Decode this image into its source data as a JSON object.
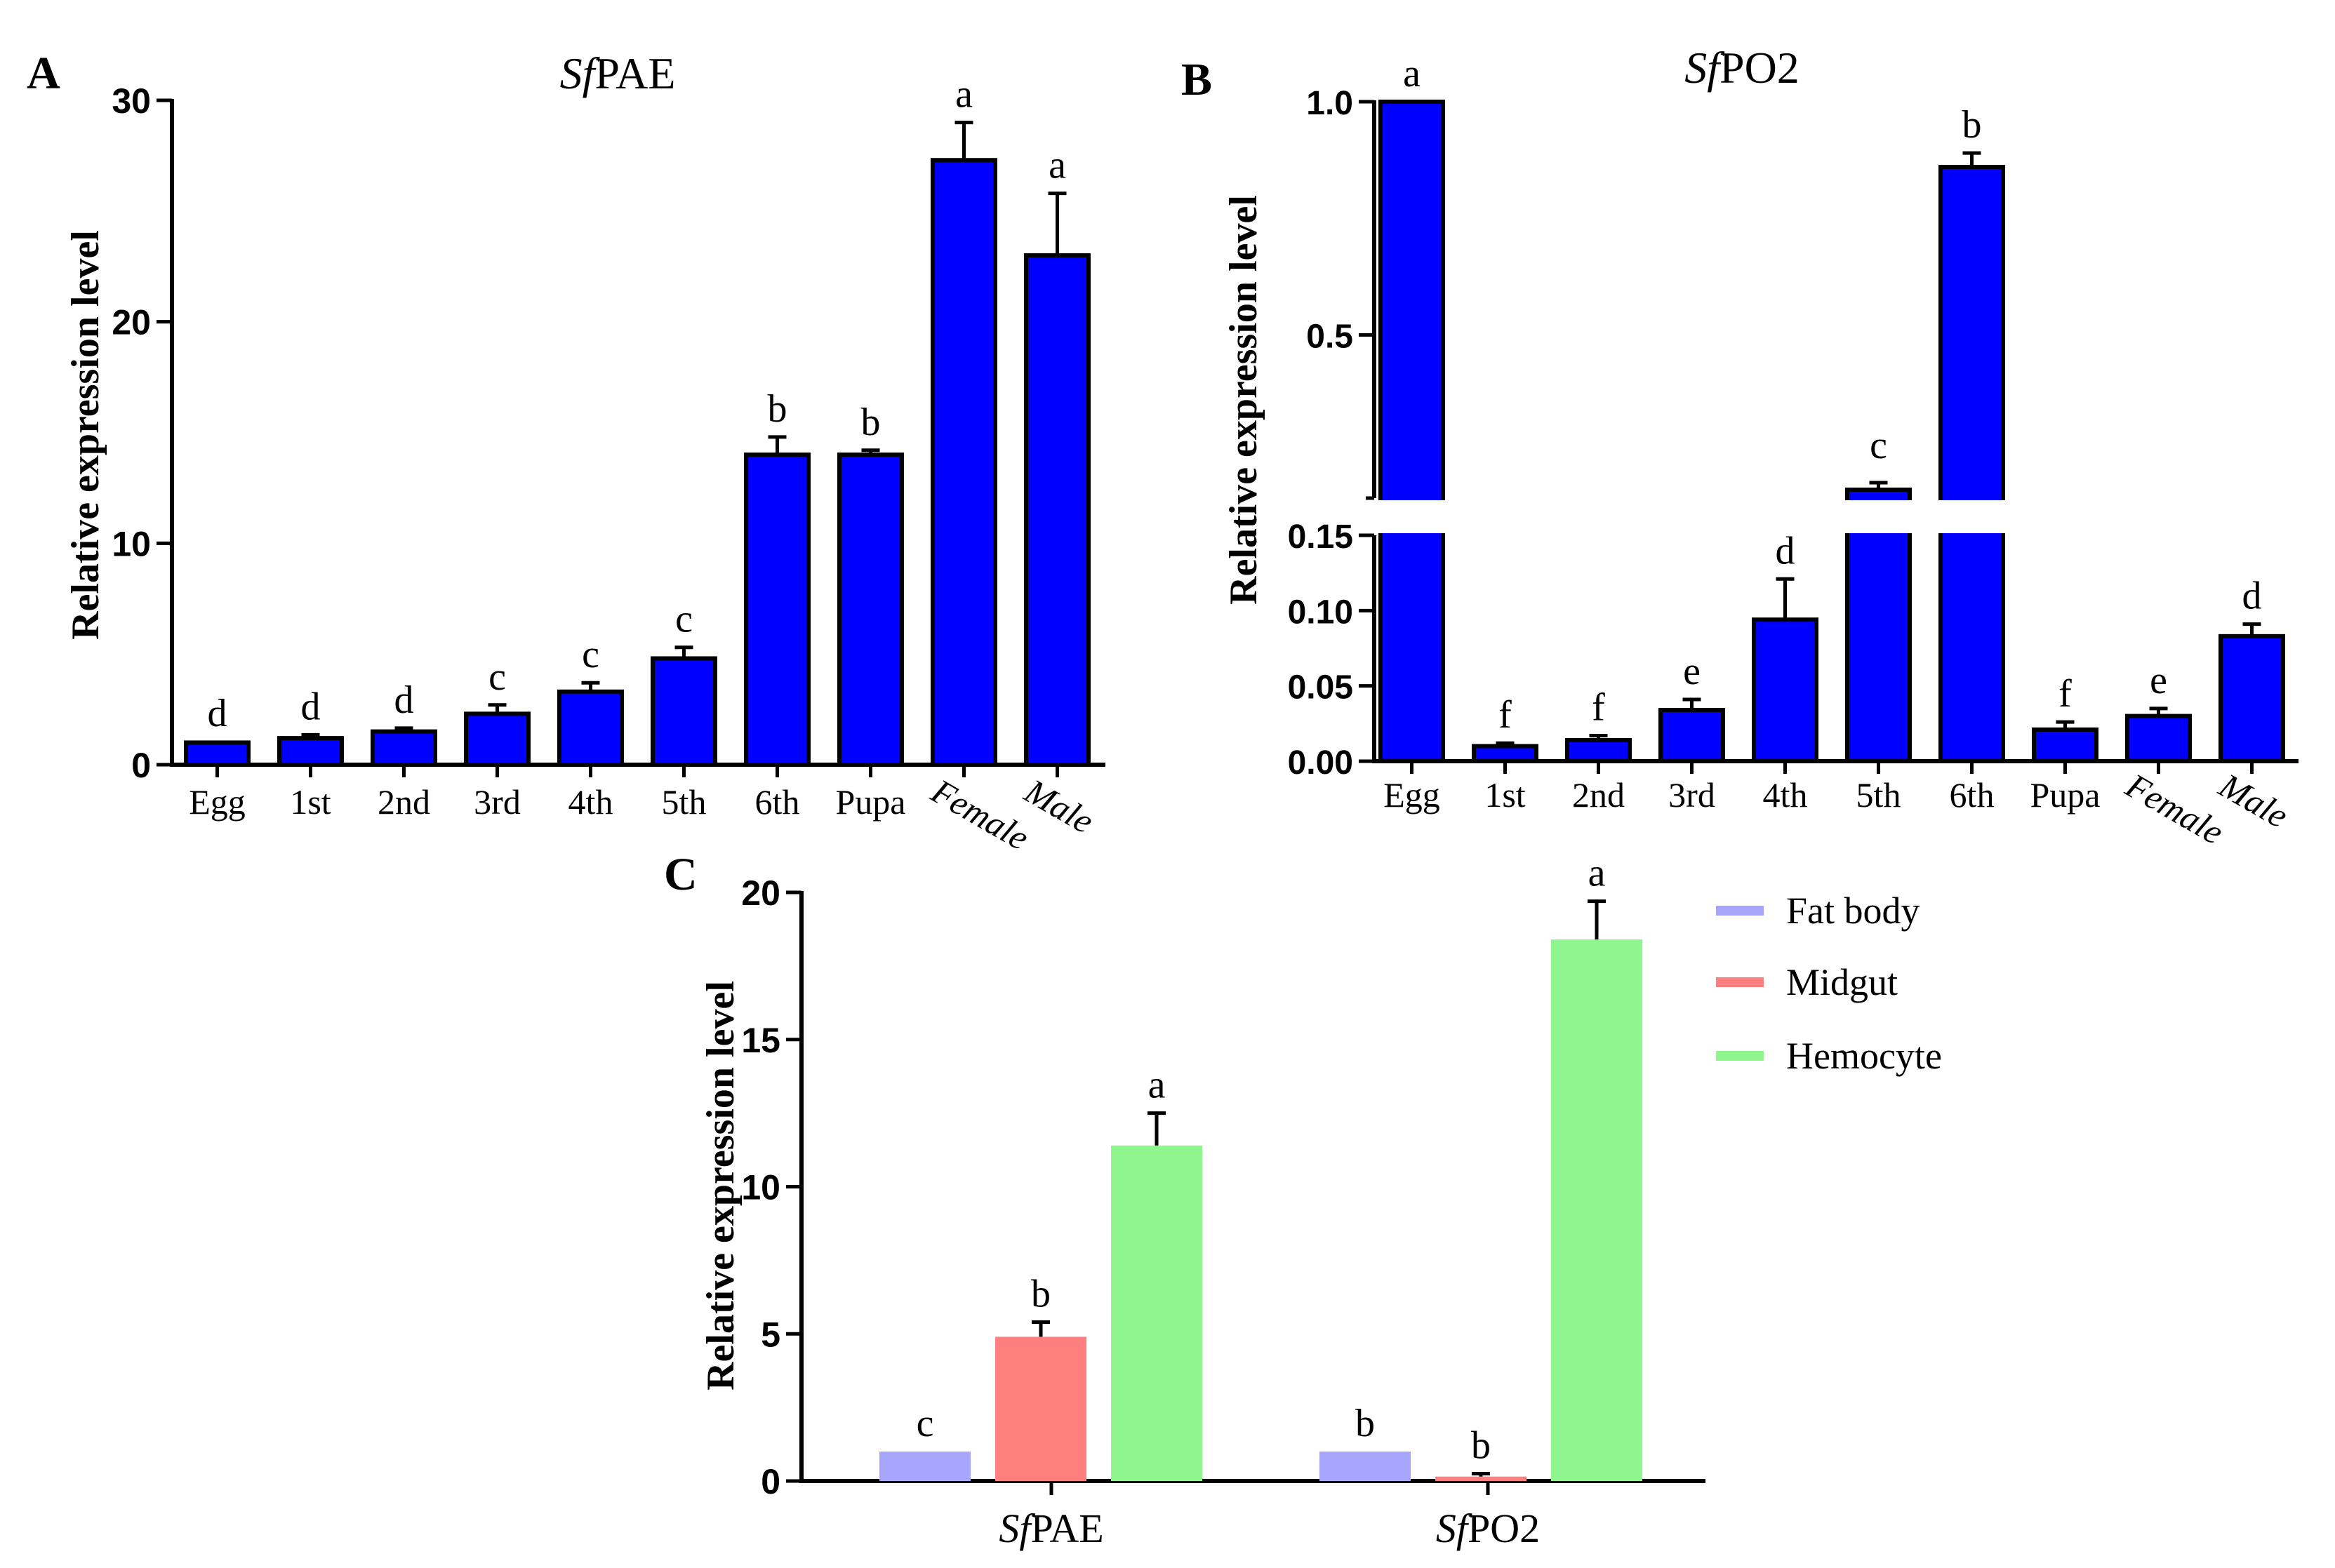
{
  "panel_labels": {
    "a": "A",
    "b": "B",
    "c": "C"
  },
  "colors": {
    "bar_blue": "#0000ff",
    "fat_body": "#a6a6ff",
    "midgut": "#ff7f7f",
    "hemocyte": "#8ff58f",
    "axis": "#000000"
  },
  "chart_data": [
    {
      "id": "A",
      "type": "bar",
      "title_italic": "Sf",
      "title_rest": "PAE",
      "ylabel": "Relative expression level",
      "ylim": [
        0,
        30
      ],
      "yticks": [
        "0",
        "10",
        "20",
        "30"
      ],
      "categories": [
        "Egg",
        "1st",
        "2nd",
        "3rd",
        "4th",
        "5th",
        "6th",
        "Pupa",
        "Female",
        "Male"
      ],
      "values": [
        1.0,
        1.2,
        1.5,
        2.3,
        3.3,
        4.8,
        14.0,
        14.0,
        27.3,
        23.0
      ],
      "errors": [
        0.05,
        0.15,
        0.15,
        0.4,
        0.4,
        0.5,
        0.8,
        0.2,
        1.7,
        2.8
      ],
      "letters": [
        "d",
        "d",
        "d",
        "c",
        "c",
        "c",
        "b",
        "b",
        "a",
        "a"
      ],
      "color": "#0000ff"
    },
    {
      "id": "B",
      "type": "bar",
      "title_italic": "Sf",
      "title_rest": "PO2",
      "ylabel": "Relative expression level",
      "broken_axis": {
        "lower": [
          0,
          0.15
        ],
        "upper": [
          0.15,
          1.0
        ]
      },
      "yticks_lower": [
        "0.00",
        "0.05",
        "0.10",
        "0.15"
      ],
      "yticks_upper": [
        "0.5",
        "1.0"
      ],
      "categories": [
        "Egg",
        "1st",
        "2nd",
        "3rd",
        "4th",
        "5th",
        "6th",
        "Pupa",
        "Female",
        "Male"
      ],
      "values": [
        1.0,
        0.01,
        0.014,
        0.034,
        0.094,
        0.2,
        0.86,
        0.021,
        0.03,
        0.083
      ],
      "errors": [
        0.0,
        0.002,
        0.003,
        0.007,
        0.027,
        0.01,
        0.03,
        0.005,
        0.005,
        0.008
      ],
      "letters": [
        "a",
        "f",
        "f",
        "e",
        "d",
        "c",
        "b",
        "f",
        "e",
        "d"
      ],
      "color": "#0000ff"
    },
    {
      "id": "C",
      "type": "bar",
      "ylabel": "Relative expression level",
      "ylim": [
        0,
        20
      ],
      "yticks": [
        "0",
        "5",
        "10",
        "15",
        "20"
      ],
      "groups": [
        {
          "italic": "Sf",
          "rest": "PAE"
        },
        {
          "italic": "Sf",
          "rest": "PO2"
        }
      ],
      "legend_position": "top-right",
      "series": [
        {
          "name": "Fat body",
          "color": "#a6a6ff",
          "values": [
            1.0,
            1.0
          ],
          "errors": [
            0.0,
            0.0
          ],
          "letters": [
            "c",
            "b"
          ]
        },
        {
          "name": "Midgut",
          "color": "#ff7f7f",
          "values": [
            4.9,
            0.15
          ],
          "errors": [
            0.5,
            0.1
          ],
          "letters": [
            "b",
            "b"
          ]
        },
        {
          "name": "Hemocyte",
          "color": "#8ff58f",
          "values": [
            11.4,
            18.4
          ],
          "errors": [
            1.1,
            1.3
          ],
          "letters": [
            "a",
            "a"
          ]
        }
      ]
    }
  ]
}
